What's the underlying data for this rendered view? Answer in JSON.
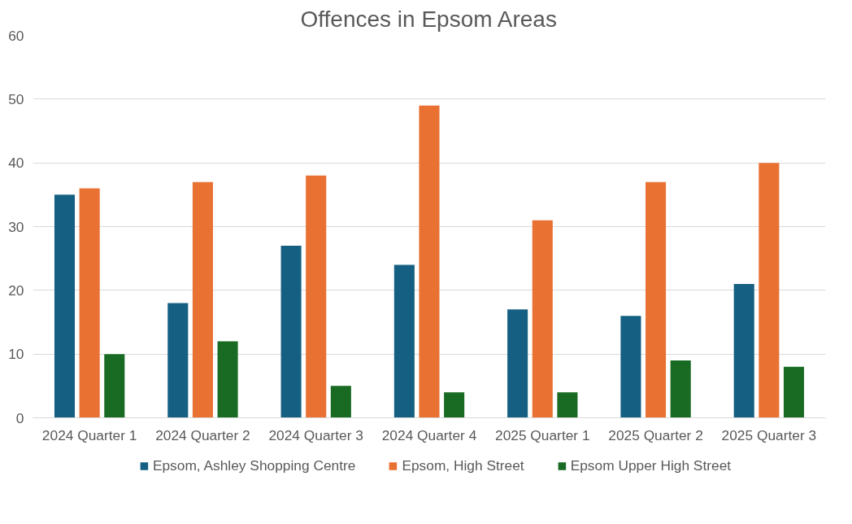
{
  "chart_data": {
    "type": "bar",
    "title": "Offences in Epsom Areas",
    "categories": [
      "2024 Quarter 1",
      "2024 Quarter 2",
      "2024 Quarter 3",
      "2024 Quarter 4",
      "2025 Quarter 1",
      "2025 Quarter 2",
      "2025 Quarter 3"
    ],
    "series": [
      {
        "name": "Epsom, Ashley Shopping Centre",
        "color": "#156082",
        "values": [
          35,
          18,
          27,
          24,
          17,
          16,
          21
        ]
      },
      {
        "name": "Epsom, High Street",
        "color": "#e97132",
        "values": [
          36,
          37,
          38,
          49,
          31,
          37,
          40
        ]
      },
      {
        "name": "Epsom Upper High Street",
        "color": "#196b24",
        "values": [
          10,
          12,
          5,
          4,
          4,
          9,
          8
        ]
      }
    ],
    "ylim": [
      0,
      60
    ],
    "yticks": [
      0,
      10,
      20,
      30,
      40,
      50,
      60
    ],
    "grid": "y",
    "legend": "bottom"
  }
}
